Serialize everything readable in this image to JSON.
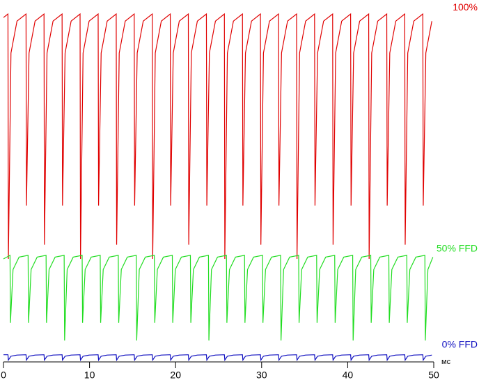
{
  "chart_data": {
    "type": "line",
    "x_label": "мс",
    "xlim": [
      0,
      50
    ],
    "xticks": [
      0,
      10,
      20,
      30,
      40,
      50
    ],
    "ylim": [
      0,
      100
    ],
    "series": [
      {
        "name": "100%",
        "color": "#e00000",
        "x": [
          0,
          0.52,
          0.57,
          0.87,
          1.57,
          2.62,
          2.67,
          2.97,
          3.67,
          4.71,
          4.76,
          5.06,
          5.76,
          6.81,
          6.86,
          7.16,
          7.86,
          8.9,
          8.95,
          9.25,
          9.95,
          11.0,
          11.05,
          11.35,
          12.05,
          13.1,
          13.15,
          13.45,
          14.15,
          15.19,
          15.24,
          15.54,
          16.24,
          17.29,
          17.34,
          17.64,
          18.34,
          19.38,
          19.43,
          19.73,
          20.43,
          21.48,
          21.53,
          21.83,
          22.53,
          23.58,
          23.63,
          23.93,
          24.63,
          25.67,
          25.72,
          26.02,
          26.72,
          27.77,
          27.82,
          28.12,
          28.82,
          29.86,
          29.91,
          30.21,
          30.91,
          31.96,
          32.01,
          32.31,
          33.01,
          34.06,
          34.11,
          34.41,
          35.11,
          36.15,
          36.2,
          36.5,
          37.2,
          38.25,
          38.3,
          38.6,
          39.3,
          40.34,
          40.39,
          40.69,
          41.39,
          42.44,
          42.49,
          42.79,
          43.49,
          44.54,
          44.59,
          44.89,
          45.59,
          46.63,
          46.68,
          46.98,
          47.68,
          48.73,
          48.78,
          49.08,
          49.78
        ],
        "values": [
          98,
          99,
          30,
          88,
          97,
          99,
          45,
          88,
          97,
          99,
          34,
          88,
          97,
          99,
          45,
          88,
          97,
          99,
          30,
          88,
          97,
          99,
          45,
          88,
          97,
          99,
          34,
          88,
          97,
          99,
          45,
          88,
          97,
          99,
          30,
          88,
          97,
          99,
          45,
          88,
          97,
          99,
          34,
          88,
          97,
          99,
          45,
          88,
          97,
          99,
          30,
          88,
          97,
          99,
          45,
          88,
          97,
          99,
          34,
          88,
          97,
          99,
          45,
          88,
          97,
          99,
          30,
          88,
          97,
          99,
          45,
          88,
          97,
          99,
          34,
          88,
          97,
          99,
          45,
          88,
          97,
          99,
          30,
          88,
          97,
          99,
          45,
          88,
          97,
          99,
          34,
          88,
          97,
          99,
          45,
          88,
          97
        ]
      },
      {
        "name": "50% FFD",
        "color": "#22dd22",
        "x": [
          0,
          0.76,
          0.81,
          1.11,
          1.81,
          2.86,
          2.91,
          3.21,
          3.91,
          4.95,
          5.0,
          5.3,
          6.0,
          7.05,
          7.1,
          7.4,
          8.1,
          9.14,
          9.19,
          9.49,
          10.19,
          11.24,
          11.29,
          11.59,
          12.29,
          13.34,
          13.39,
          13.69,
          14.39,
          15.43,
          15.48,
          15.78,
          16.48,
          17.53,
          17.58,
          17.88,
          18.58,
          19.62,
          19.67,
          19.97,
          20.67,
          21.72,
          21.77,
          22.07,
          22.77,
          23.82,
          23.87,
          24.17,
          24.87,
          25.91,
          25.96,
          26.26,
          26.96,
          28.01,
          28.06,
          28.36,
          29.06,
          30.1,
          30.15,
          30.45,
          31.15,
          32.2,
          32.25,
          32.55,
          33.25,
          34.3,
          34.35,
          34.65,
          35.35,
          36.39,
          36.44,
          36.74,
          37.44,
          38.49,
          38.54,
          38.84,
          39.54,
          40.58,
          40.63,
          40.93,
          41.63,
          42.68,
          42.73,
          43.03,
          43.73,
          44.78,
          44.83,
          45.13,
          45.83,
          46.87,
          46.92,
          47.22,
          47.92,
          48.97,
          49.02,
          49.32,
          49.9
        ],
        "values": [
          30,
          31,
          12,
          27,
          30.5,
          31,
          12,
          27,
          30.5,
          31,
          12,
          27,
          30.5,
          31,
          7,
          27,
          30.5,
          31,
          12,
          27,
          30.5,
          31,
          12,
          27,
          30.5,
          31,
          12,
          27,
          30.5,
          31,
          7,
          27,
          30.5,
          31,
          12,
          27,
          30.5,
          31,
          12,
          27,
          30.5,
          31,
          12,
          27,
          30.5,
          31,
          7,
          27,
          30.5,
          31,
          12,
          27,
          30.5,
          31,
          12,
          27,
          30.5,
          31,
          12,
          27,
          30.5,
          31,
          7,
          27,
          30.5,
          31,
          12,
          27,
          30.5,
          31,
          12,
          27,
          30.5,
          31,
          12,
          27,
          30.5,
          31,
          7,
          27,
          30.5,
          31,
          12,
          27,
          30.5,
          31,
          12,
          27,
          30.5,
          31,
          12,
          27,
          30.5,
          31,
          7,
          27,
          30.5
        ]
      },
      {
        "name": "0% FFD",
        "color": "#1010c0",
        "x": [
          0,
          0.52,
          0.57,
          0.87,
          1.57,
          2.62,
          2.67,
          2.97,
          3.67,
          4.71,
          4.76,
          5.06,
          5.76,
          6.81,
          6.86,
          7.16,
          7.86,
          8.9,
          8.95,
          9.25,
          9.95,
          11.0,
          11.05,
          11.35,
          12.05,
          13.1,
          13.15,
          13.45,
          14.15,
          15.19,
          15.24,
          15.54,
          16.24,
          17.29,
          17.34,
          17.64,
          18.34,
          19.38,
          19.43,
          19.73,
          20.43,
          21.48,
          21.53,
          21.83,
          22.53,
          23.58,
          23.63,
          23.93,
          24.63,
          25.67,
          25.72,
          26.02,
          26.72,
          27.77,
          27.82,
          28.12,
          28.82,
          29.86,
          29.91,
          30.21,
          30.91,
          31.96,
          32.01,
          32.31,
          33.01,
          34.06,
          34.11,
          34.41,
          35.11,
          36.15,
          36.2,
          36.5,
          37.2,
          38.25,
          38.3,
          38.6,
          39.3,
          40.34,
          40.39,
          40.69,
          41.39,
          42.44,
          42.49,
          42.79,
          43.49,
          44.54,
          44.59,
          44.89,
          45.59,
          46.63,
          46.68,
          46.98,
          47.68,
          48.73,
          48.78,
          49.08,
          49.78
        ],
        "values": [
          3,
          3,
          1.5,
          2.6,
          2.9,
          3,
          1.5,
          2.6,
          2.9,
          3,
          1.5,
          2.6,
          2.9,
          3,
          1.5,
          2.6,
          2.9,
          3,
          1.5,
          2.6,
          2.9,
          3,
          1.5,
          2.6,
          2.9,
          3,
          1.5,
          2.6,
          2.9,
          3,
          1.5,
          2.6,
          2.9,
          3,
          1.5,
          2.6,
          2.9,
          3,
          1.5,
          2.6,
          2.9,
          3,
          1.5,
          2.6,
          2.9,
          3,
          1.5,
          2.6,
          2.9,
          3,
          1.5,
          2.6,
          2.9,
          3,
          1.5,
          2.6,
          2.9,
          3,
          1.5,
          2.6,
          2.9,
          3,
          1.5,
          2.6,
          2.9,
          3,
          1.5,
          2.6,
          2.9,
          3,
          1.5,
          2.6,
          2.9,
          3,
          1.5,
          2.6,
          2.9,
          3,
          1.5,
          2.6,
          2.9,
          3,
          1.5,
          2.6,
          2.9,
          3,
          1.5,
          2.6,
          2.9,
          3,
          1.5,
          2.6,
          2.9,
          3,
          1.5,
          2.6,
          2.9
        ]
      }
    ]
  }
}
